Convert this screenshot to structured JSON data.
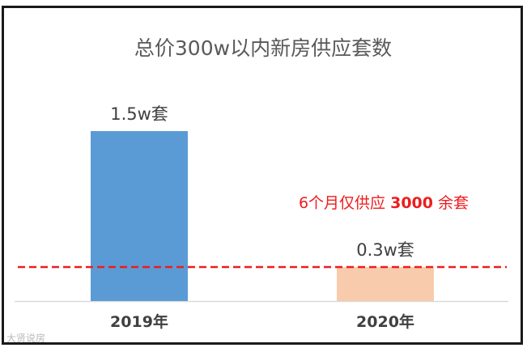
{
  "chart_data": {
    "type": "bar",
    "title": "总价300w以内新房供应套数",
    "categories": [
      "2019年",
      "2020年"
    ],
    "values": [
      1.5,
      0.3
    ],
    "data_labels": [
      "1.5w套",
      "0.3w套"
    ],
    "unit": "w套",
    "ylim": [
      0,
      1.8
    ],
    "grid": false,
    "bar_colors": [
      "#5b9bd5",
      "#f7cbac"
    ],
    "reference_line": {
      "value": 0.3,
      "style": "dashed",
      "color": "#ee1c1c",
      "annotation": {
        "prefix": "6个月仅供应 ",
        "highlight": "3000",
        "suffix": " 余套"
      }
    }
  },
  "watermark": "大贤说房",
  "colors": {
    "border": "#1a1a1a",
    "axis": "#d9d9d9",
    "title": "#595959",
    "tick_label": "#404040",
    "annotation": "#ee1c1c"
  }
}
